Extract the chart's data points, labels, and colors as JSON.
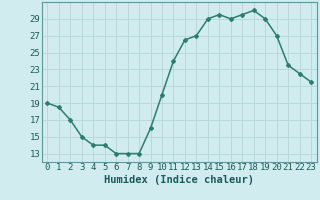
{
  "x": [
    0,
    1,
    2,
    3,
    4,
    5,
    6,
    7,
    8,
    9,
    10,
    11,
    12,
    13,
    14,
    15,
    16,
    17,
    18,
    19,
    20,
    21,
    22,
    23
  ],
  "y": [
    19,
    18.5,
    17,
    15,
    14,
    14,
    13,
    13,
    13,
    16,
    20,
    24,
    26.5,
    27,
    29,
    29.5,
    29,
    29.5,
    30,
    29,
    27,
    23.5,
    22.5,
    21.5
  ],
  "line_color": "#2d7d6e",
  "marker": "D",
  "marker_size": 2.0,
  "bg_color": "#d0ecee",
  "grid_color": "#b8d8da",
  "xlabel": "Humidex (Indice chaleur)",
  "xlabel_fontsize": 7.5,
  "tick_fontsize": 6.5,
  "xlim": [
    -0.5,
    23.5
  ],
  "ylim": [
    12,
    31
  ],
  "yticks": [
    13,
    15,
    17,
    19,
    21,
    23,
    25,
    27,
    29
  ],
  "xticks": [
    0,
    1,
    2,
    3,
    4,
    5,
    6,
    7,
    8,
    9,
    10,
    11,
    12,
    13,
    14,
    15,
    16,
    17,
    18,
    19,
    20,
    21,
    22,
    23
  ],
  "linewidth": 1.1,
  "spine_color": "#5a9a9a"
}
